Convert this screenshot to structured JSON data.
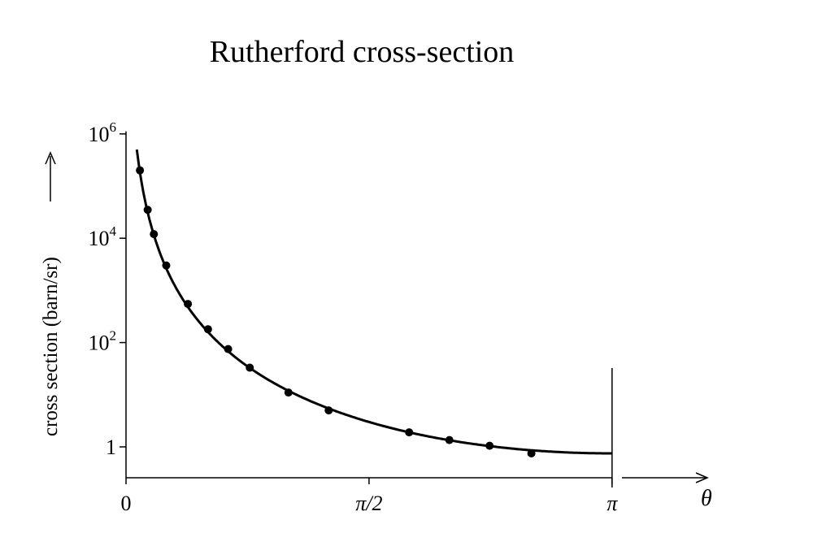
{
  "chart_data": {
    "type": "scatter",
    "title": "Rutherford cross-section",
    "ylabel": "cross section (barn/sr)",
    "xlabel": "θ",
    "yscale": "log",
    "ylim_exp": [
      -0.6,
      6.05
    ],
    "xlim": [
      0,
      4.0
    ],
    "x_ticks": [
      {
        "value": 0,
        "label": "0"
      },
      {
        "value": 1.5708,
        "label": "π/2"
      },
      {
        "value": 3.1416,
        "label": "π"
      }
    ],
    "y_ticks": [
      {
        "exp": 6,
        "base": "10",
        "sup": "6"
      },
      {
        "exp": 4,
        "base": "10",
        "sup": "4"
      },
      {
        "exp": 2,
        "base": "10",
        "sup": "2"
      },
      {
        "exp": 0,
        "base": "1",
        "sup": ""
      }
    ],
    "series": [
      {
        "kind": "points",
        "x": [
          0.09,
          0.14,
          0.18,
          0.26,
          0.4,
          0.53,
          0.66,
          0.8,
          1.05,
          1.31,
          1.83,
          2.09,
          2.35,
          2.62
        ],
        "y": [
          200000,
          35000,
          12000,
          3000,
          550,
          180,
          75,
          33,
          11,
          5.0,
          1.9,
          1.35,
          1.05,
          0.75
        ]
      },
      {
        "kind": "curve",
        "formula": "A / sin^4(theta/2)",
        "A": 0.75,
        "x_range": [
          0.07,
          3.1416
        ]
      }
    ],
    "grid": false,
    "legend": "none"
  }
}
